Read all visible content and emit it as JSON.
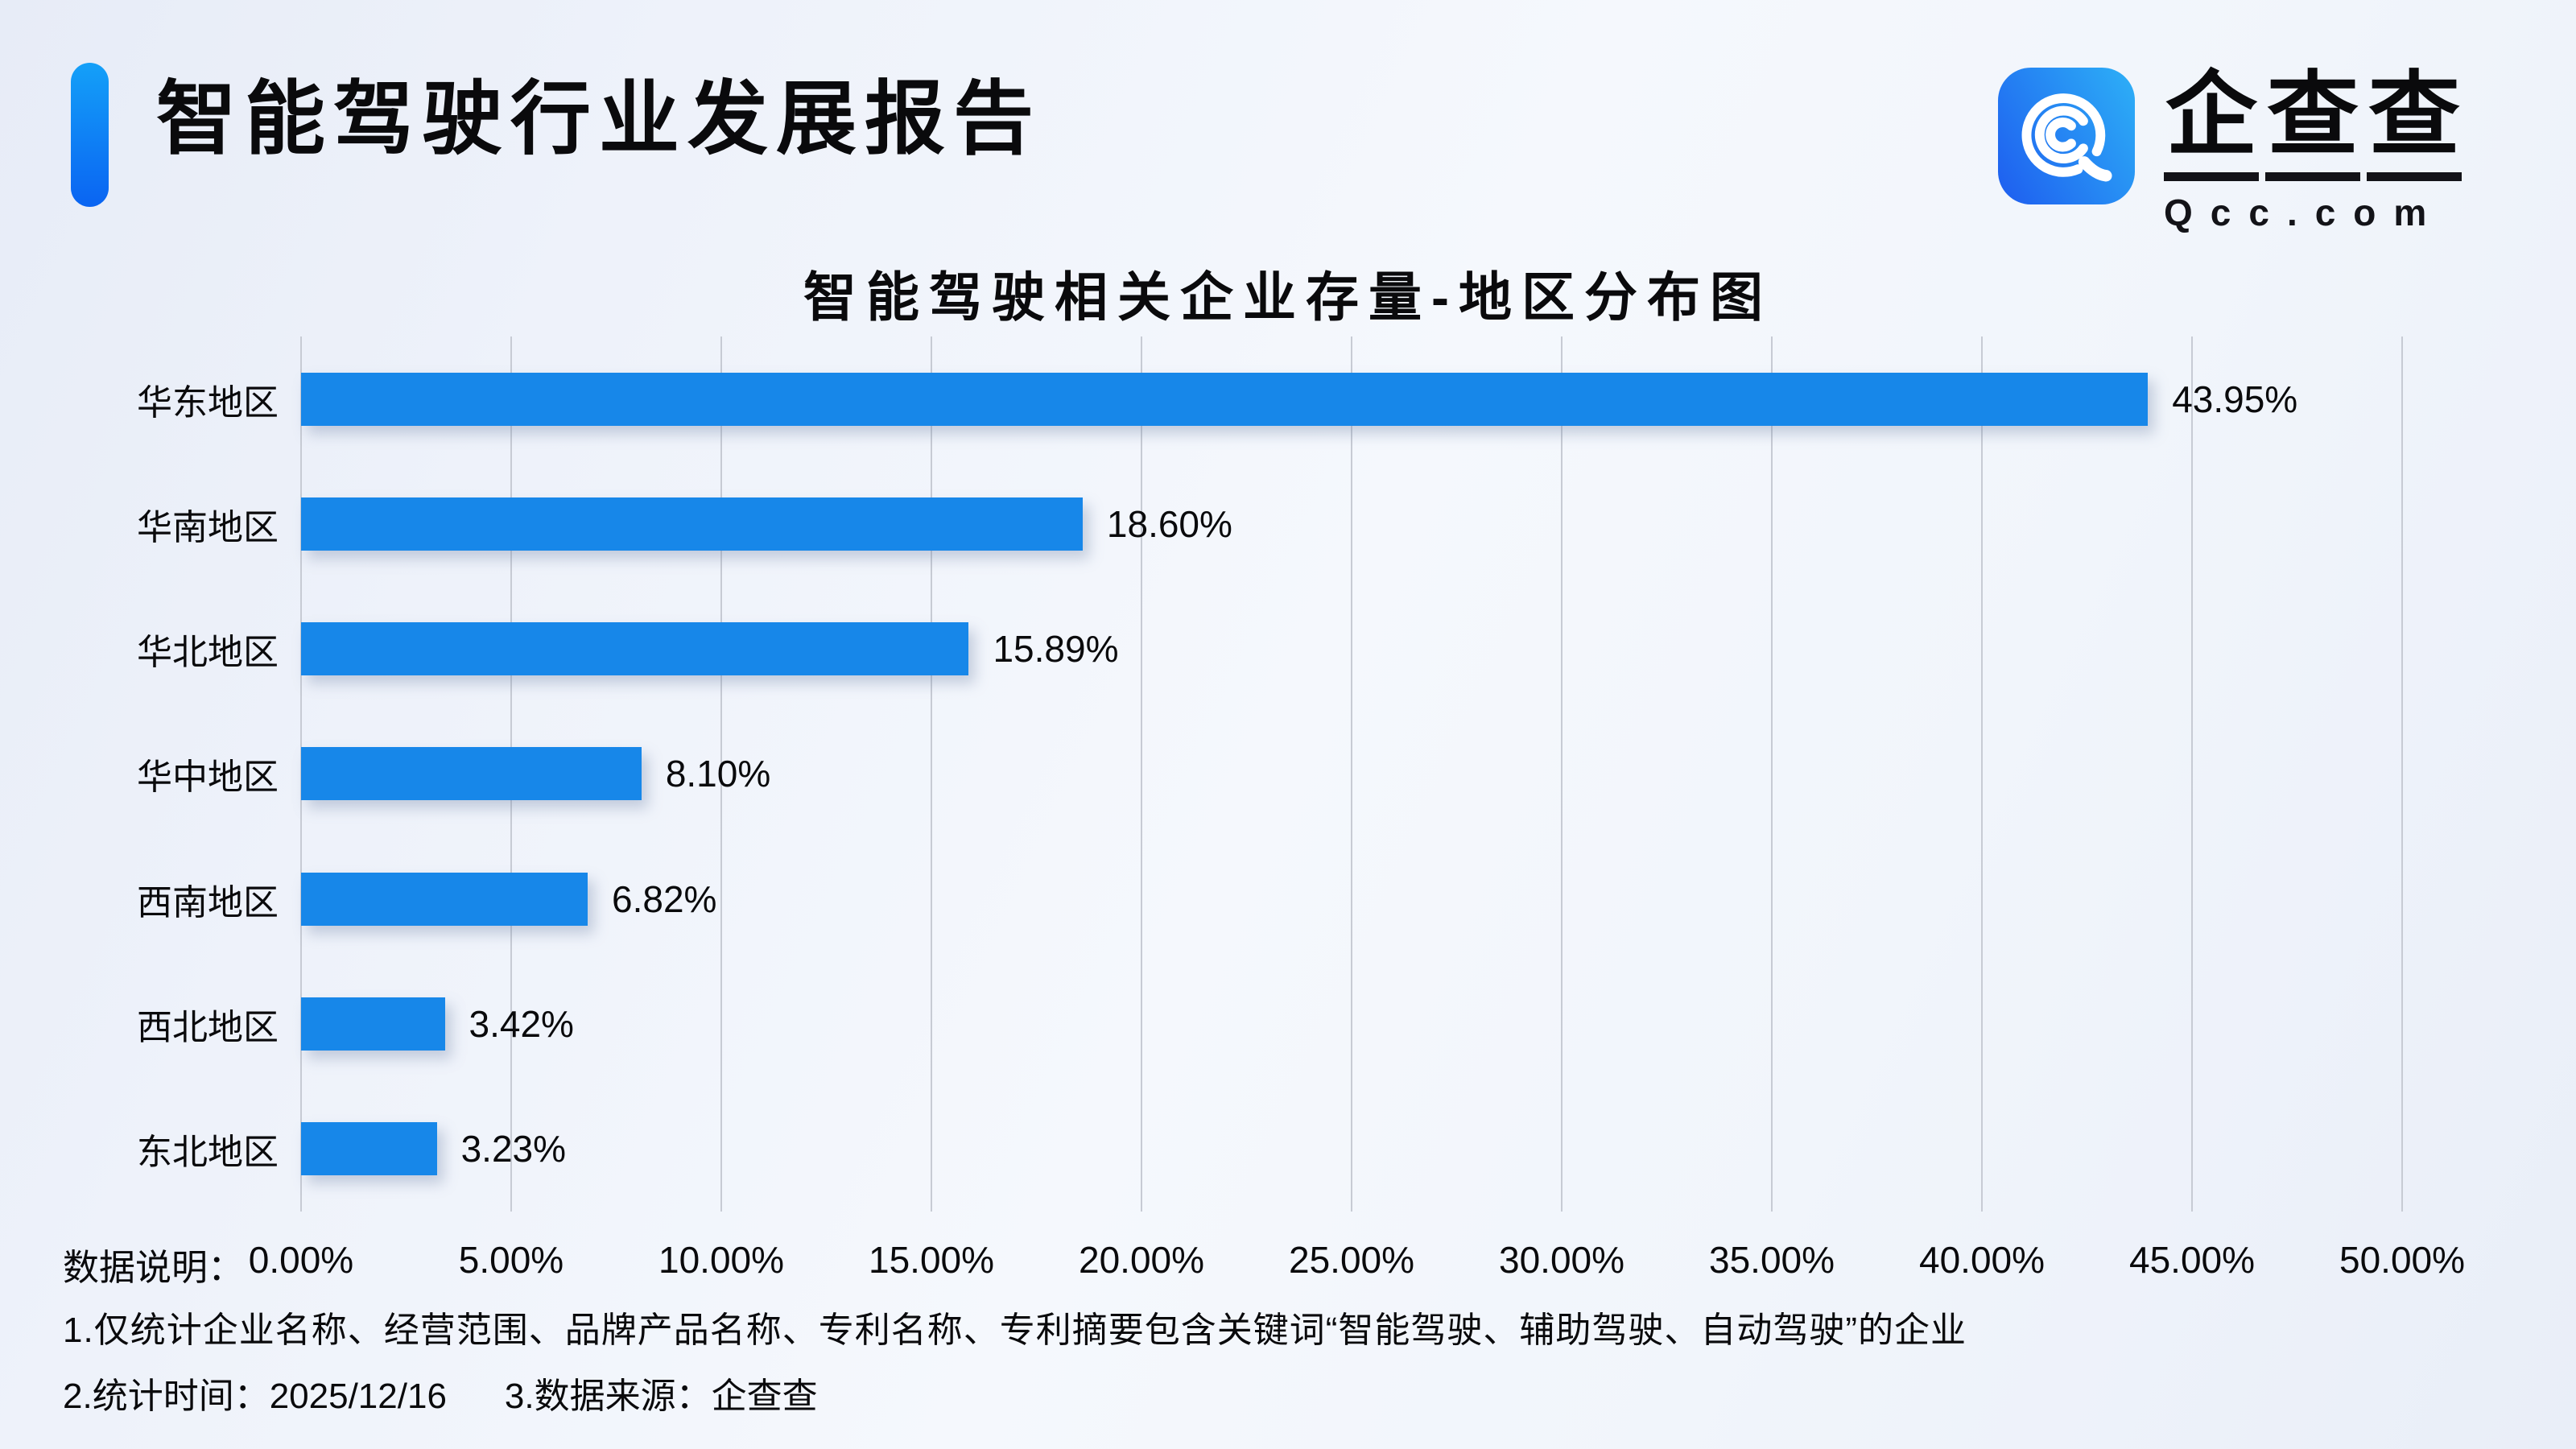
{
  "header": {
    "title": "智能驾驶行业发展报告"
  },
  "logo": {
    "icon": "qcc-magnifier-icon",
    "brand_chars": [
      "企",
      "查",
      "查"
    ],
    "domain": "Qcc.com"
  },
  "chart_data": {
    "type": "bar",
    "orientation": "horizontal",
    "title": "智能驾驶相关企业存量-地区分布图",
    "categories": [
      "华东地区",
      "华南地区",
      "华北地区",
      "华中地区",
      "西南地区",
      "西北地区",
      "东北地区"
    ],
    "values": [
      43.95,
      18.6,
      15.89,
      8.1,
      6.82,
      3.42,
      3.23
    ],
    "value_labels": [
      "43.95%",
      "18.60%",
      "15.89%",
      "8.10%",
      "6.82%",
      "3.42%",
      "3.23%"
    ],
    "x_ticks": [
      "0.00%",
      "5.00%",
      "10.00%",
      "15.00%",
      "20.00%",
      "25.00%",
      "30.00%",
      "35.00%",
      "40.00%",
      "45.00%",
      "50.00%"
    ],
    "xlim": [
      0,
      50
    ],
    "grid": true,
    "legend": "none",
    "bar_color": "#1787e9"
  },
  "footnotes": {
    "label": "数据说明：",
    "note1": "1.仅统计企业名称、经营范围、品牌产品名称、专利名称、专利摘要包含关键词“智能驾驶、辅助驾驶、自动驾驶”的企业",
    "note2_time": "2.统计时间：2025/12/16",
    "note2_source": "3.数据来源：企查查"
  },
  "colors": {
    "bar": "#1787e9",
    "accent_top": "#14a0f8",
    "accent_bottom": "#0a64f2",
    "logo_gradient_left": "#1f63f0",
    "logo_gradient_right": "#2caaf6",
    "gridline": "#c7cbd4",
    "text": "#0a0a0c",
    "background_dark": "#e7ecf7",
    "background_light": "#f5f8fd"
  }
}
